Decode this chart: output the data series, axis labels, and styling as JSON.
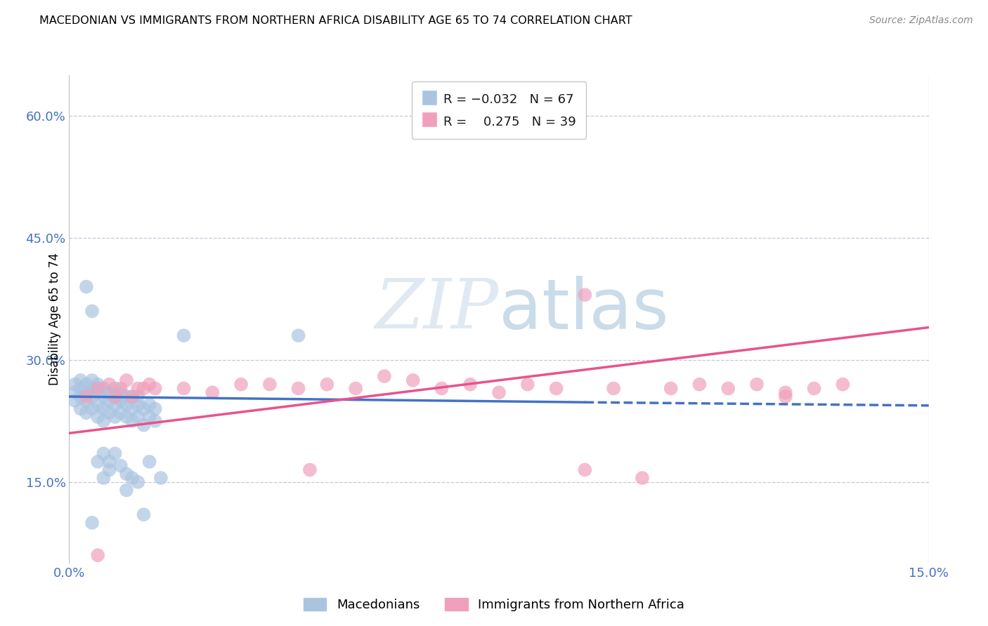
{
  "title": "MACEDONIAN VS IMMIGRANTS FROM NORTHERN AFRICA DISABILITY AGE 65 TO 74 CORRELATION CHART",
  "source": "Source: ZipAtlas.com",
  "ylabel": "Disability Age 65 to 74",
  "xlim": [
    0.0,
    0.15
  ],
  "ylim": [
    0.05,
    0.65
  ],
  "xticks": [
    0.0,
    0.15
  ],
  "xtick_labels": [
    "0.0%",
    "15.0%"
  ],
  "ytick_labels": [
    "15.0%",
    "30.0%",
    "45.0%",
    "60.0%"
  ],
  "ytick_values": [
    0.15,
    0.3,
    0.45,
    0.6
  ],
  "watermark": "ZIPatlas",
  "macedonian_R": -0.032,
  "macedonian_N": 67,
  "immigrant_R": 0.275,
  "immigrant_N": 39,
  "blue_color": "#aac4e0",
  "pink_color": "#f0a0bc",
  "blue_line_color": "#4472c4",
  "pink_line_color": "#e8538c",
  "legend_label_1": "Macedonians",
  "legend_label_2": "Immigrants from Northern Africa",
  "macedonian_points": [
    [
      0.001,
      0.25
    ],
    [
      0.001,
      0.26
    ],
    [
      0.001,
      0.27
    ],
    [
      0.002,
      0.24
    ],
    [
      0.002,
      0.255
    ],
    [
      0.002,
      0.265
    ],
    [
      0.002,
      0.275
    ],
    [
      0.003,
      0.235
    ],
    [
      0.003,
      0.25
    ],
    [
      0.003,
      0.26
    ],
    [
      0.003,
      0.27
    ],
    [
      0.004,
      0.24
    ],
    [
      0.004,
      0.255
    ],
    [
      0.004,
      0.265
    ],
    [
      0.004,
      0.275
    ],
    [
      0.005,
      0.23
    ],
    [
      0.005,
      0.245
    ],
    [
      0.005,
      0.26
    ],
    [
      0.005,
      0.27
    ],
    [
      0.006,
      0.225
    ],
    [
      0.006,
      0.24
    ],
    [
      0.006,
      0.255
    ],
    [
      0.006,
      0.265
    ],
    [
      0.007,
      0.235
    ],
    [
      0.007,
      0.25
    ],
    [
      0.007,
      0.26
    ],
    [
      0.008,
      0.23
    ],
    [
      0.008,
      0.245
    ],
    [
      0.008,
      0.255
    ],
    [
      0.008,
      0.265
    ],
    [
      0.009,
      0.235
    ],
    [
      0.009,
      0.25
    ],
    [
      0.009,
      0.26
    ],
    [
      0.01,
      0.23
    ],
    [
      0.01,
      0.245
    ],
    [
      0.01,
      0.255
    ],
    [
      0.011,
      0.225
    ],
    [
      0.011,
      0.24
    ],
    [
      0.011,
      0.255
    ],
    [
      0.012,
      0.23
    ],
    [
      0.012,
      0.245
    ],
    [
      0.012,
      0.255
    ],
    [
      0.013,
      0.22
    ],
    [
      0.013,
      0.24
    ],
    [
      0.014,
      0.23
    ],
    [
      0.014,
      0.245
    ],
    [
      0.015,
      0.225
    ],
    [
      0.015,
      0.24
    ],
    [
      0.003,
      0.39
    ],
    [
      0.004,
      0.36
    ],
    [
      0.02,
      0.33
    ],
    [
      0.04,
      0.33
    ],
    [
      0.005,
      0.175
    ],
    [
      0.006,
      0.185
    ],
    [
      0.007,
      0.175
    ],
    [
      0.008,
      0.185
    ],
    [
      0.009,
      0.17
    ],
    [
      0.01,
      0.16
    ],
    [
      0.011,
      0.155
    ],
    [
      0.01,
      0.14
    ],
    [
      0.012,
      0.15
    ],
    [
      0.013,
      0.11
    ],
    [
      0.004,
      0.1
    ],
    [
      0.006,
      0.155
    ],
    [
      0.007,
      0.165
    ],
    [
      0.014,
      0.175
    ],
    [
      0.016,
      0.155
    ]
  ],
  "immigrant_points": [
    [
      0.003,
      0.255
    ],
    [
      0.005,
      0.265
    ],
    [
      0.007,
      0.27
    ],
    [
      0.008,
      0.255
    ],
    [
      0.009,
      0.265
    ],
    [
      0.01,
      0.275
    ],
    [
      0.011,
      0.255
    ],
    [
      0.012,
      0.265
    ],
    [
      0.013,
      0.265
    ],
    [
      0.014,
      0.27
    ],
    [
      0.015,
      0.265
    ],
    [
      0.02,
      0.265
    ],
    [
      0.025,
      0.26
    ],
    [
      0.03,
      0.27
    ],
    [
      0.035,
      0.27
    ],
    [
      0.04,
      0.265
    ],
    [
      0.042,
      0.165
    ],
    [
      0.045,
      0.27
    ],
    [
      0.05,
      0.265
    ],
    [
      0.055,
      0.28
    ],
    [
      0.06,
      0.275
    ],
    [
      0.065,
      0.265
    ],
    [
      0.07,
      0.27
    ],
    [
      0.075,
      0.26
    ],
    [
      0.08,
      0.27
    ],
    [
      0.085,
      0.265
    ],
    [
      0.09,
      0.165
    ],
    [
      0.095,
      0.265
    ],
    [
      0.1,
      0.155
    ],
    [
      0.105,
      0.265
    ],
    [
      0.11,
      0.27
    ],
    [
      0.115,
      0.265
    ],
    [
      0.12,
      0.27
    ],
    [
      0.125,
      0.26
    ],
    [
      0.13,
      0.265
    ],
    [
      0.135,
      0.27
    ],
    [
      0.005,
      0.06
    ],
    [
      0.125,
      0.255
    ],
    [
      0.09,
      0.38
    ]
  ]
}
